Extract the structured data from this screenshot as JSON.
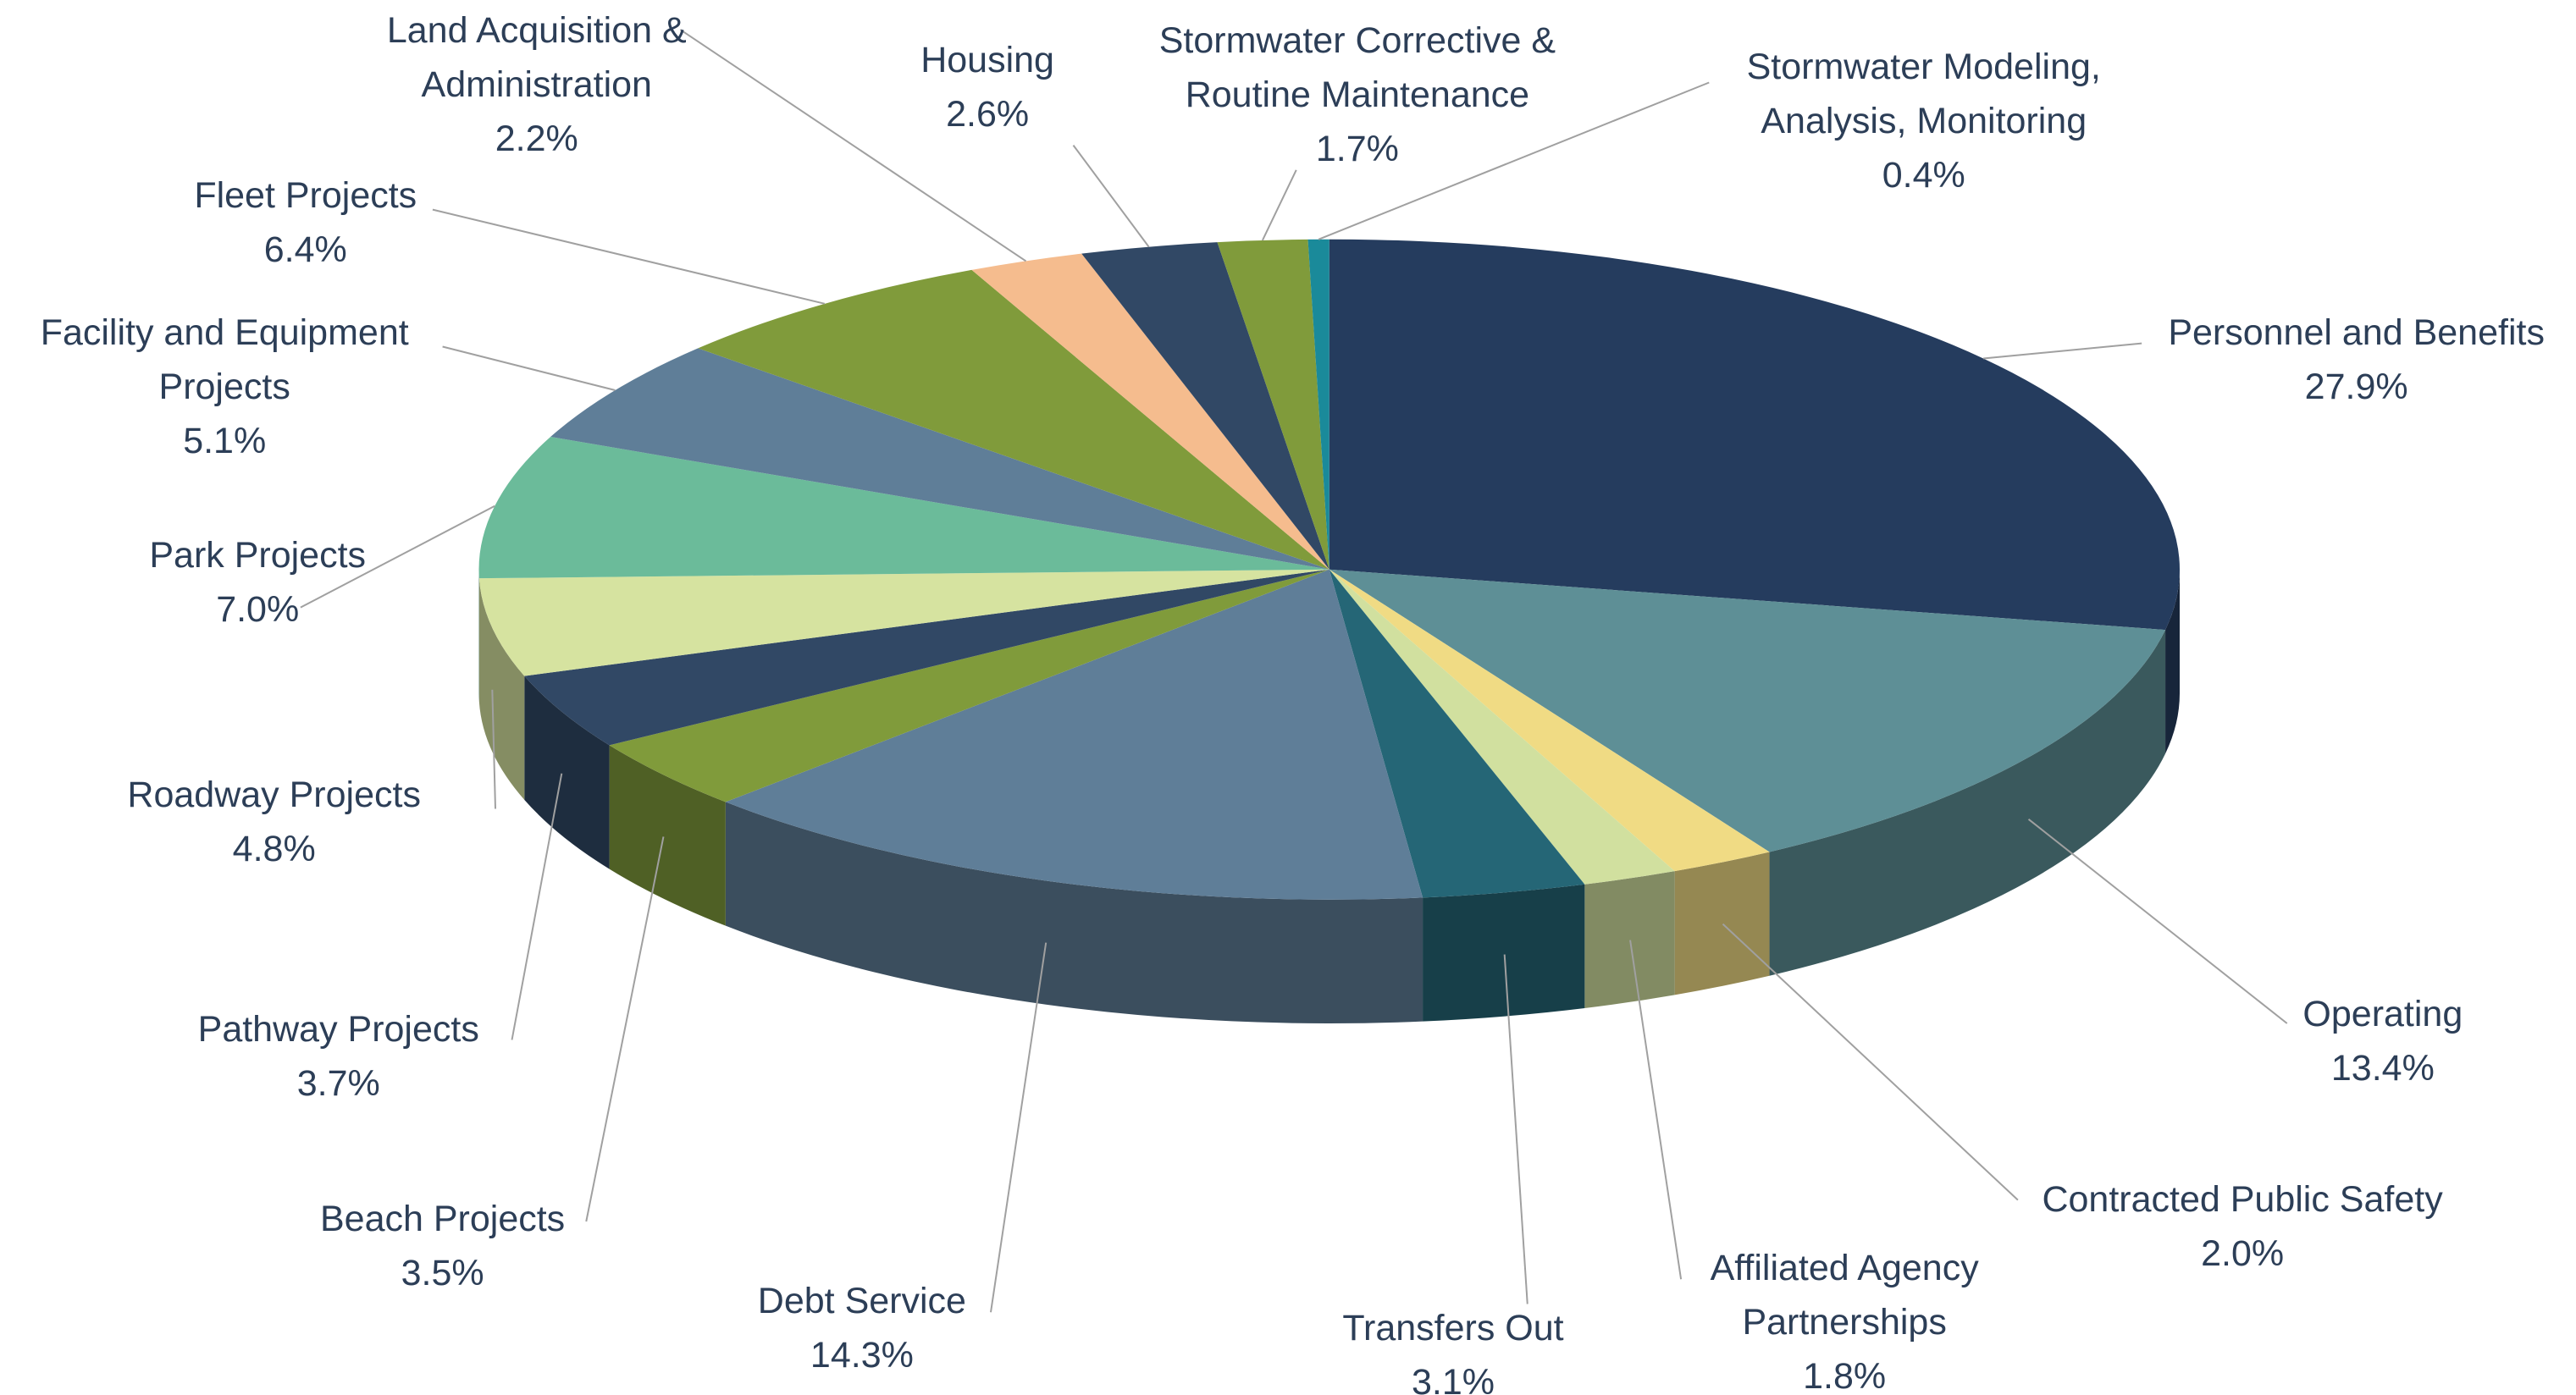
{
  "chart_data": {
    "type": "pie",
    "three_d": true,
    "categories": [
      "Personnel and Benefits",
      "Operating",
      "Contracted Public Safety",
      "Affiliated Agency Partnerships",
      "Transfers Out",
      "Debt Service",
      "Beach Projects",
      "Pathway Projects",
      "Roadway Projects",
      "Park Projects",
      "Facility and Equipment Projects",
      "Fleet Projects",
      "Land Acquisition & Administration",
      "Housing",
      "Stormwater Corrective & Routine Maintenance",
      "Stormwater Modeling, Analysis, Monitoring"
    ],
    "values": [
      27.9,
      13.4,
      2.0,
      1.8,
      3.1,
      14.3,
      3.5,
      3.7,
      4.8,
      7.0,
      5.1,
      6.4,
      2.2,
      2.6,
      1.7,
      0.4
    ],
    "value_labels": [
      "27.9%",
      "13.4%",
      "2.0%",
      "1.8%",
      "3.1%",
      "14.3%",
      "3.5%",
      "3.7%",
      "4.8%",
      "7.0%",
      "5.1%",
      "6.4%",
      "2.2%",
      "2.6%",
      "1.7%",
      "0.4%"
    ],
    "colors": [
      "#253c5e",
      "#5e8f96",
      "#f0db84",
      "#d1e09f",
      "#256676",
      "#5f7e98",
      "#809b3b",
      "#314865",
      "#d6e3a0",
      "#6bbb9a",
      "#5f7e98",
      "#809b3b",
      "#f5bc8e",
      "#314865",
      "#809b3b",
      "#1a8a9a"
    ]
  }
}
